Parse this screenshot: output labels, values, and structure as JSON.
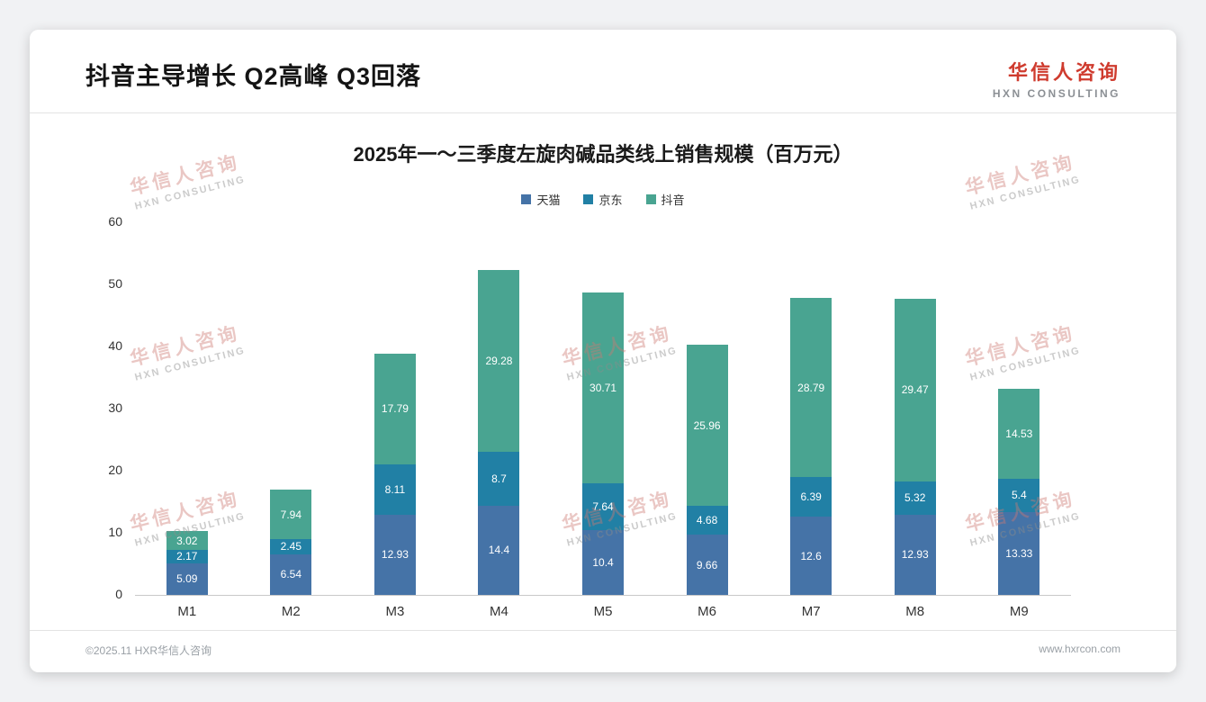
{
  "page": {
    "title": "抖音主导增长 Q2高峰 Q3回落",
    "logo": {
      "cn": "华信人咨询",
      "en": "HXN CONSULTING"
    },
    "watermark": {
      "cn": "华信人咨询",
      "en": "HXN CONSULTING"
    },
    "footer": {
      "left": "©2025.11 HXR华信人咨询",
      "right": "www.hxrcon.com"
    }
  },
  "chart_data": {
    "type": "bar",
    "stacked": true,
    "title": "2025年一～三季度左旋肉碱品类线上销售规模（百万元）",
    "categories": [
      "M1",
      "M2",
      "M3",
      "M4",
      "M5",
      "M6",
      "M7",
      "M8",
      "M9"
    ],
    "series": [
      {
        "name": "天猫",
        "color": "#4573a7",
        "values": [
          5.09,
          6.54,
          12.93,
          14.4,
          10.4,
          9.66,
          12.6,
          12.93,
          13.33
        ]
      },
      {
        "name": "京东",
        "color": "#2180a5",
        "values": [
          2.17,
          2.45,
          8.11,
          8.7,
          7.64,
          4.68,
          6.39,
          5.32,
          5.4
        ]
      },
      {
        "name": "抖音",
        "color": "#49a491",
        "values": [
          3.02,
          7.94,
          17.79,
          29.28,
          30.71,
          25.96,
          28.79,
          29.47,
          14.53
        ]
      }
    ],
    "totals": [
      10.28,
      16.93,
      38.83,
      52.38,
      48.75,
      40.3,
      47.78,
      47.72,
      33.26
    ],
    "ylim": [
      0,
      60
    ],
    "yticks": [
      0,
      10,
      20,
      30,
      40,
      50,
      60
    ],
    "xlabel": "",
    "ylabel": "",
    "legend_position": "top",
    "grid": false,
    "value_labels": "inside-white"
  }
}
